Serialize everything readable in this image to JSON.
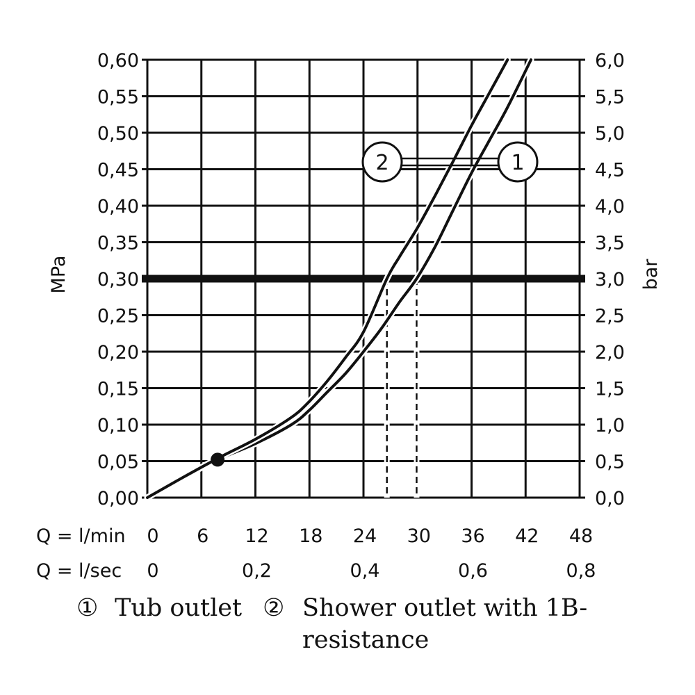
{
  "chart_data": {
    "type": "line",
    "x_unit_primary": "Q = l/min",
    "x_unit_secondary": "Q = l/sec",
    "xlim": [
      0,
      48
    ],
    "x_ticks_primary": [
      0,
      6,
      12,
      18,
      24,
      30,
      36,
      42,
      48
    ],
    "x_tick_labels_primary": [
      "0",
      "6",
      "12",
      "18",
      "24",
      "30",
      "36",
      "42",
      "48"
    ],
    "x_ticks_secondary": [
      0,
      0.2,
      0.4,
      0.6,
      0.8
    ],
    "x_tick_labels_secondary": [
      "0",
      "0,2",
      "0,4",
      "0,6",
      "0,8"
    ],
    "ylabel_left": "MPa",
    "ylabel_right": "bar",
    "ylim": [
      0,
      0.6
    ],
    "y_ticks_left": [
      0,
      0.05,
      0.1,
      0.15,
      0.2,
      0.25,
      0.3,
      0.35,
      0.4,
      0.45,
      0.5,
      0.55,
      0.6
    ],
    "y_tick_labels_left": [
      "0,00",
      "0,05",
      "0,10",
      "0,15",
      "0,20",
      "0,25",
      "0,30",
      "0,35",
      "0,40",
      "0,45",
      "0,50",
      "0,55",
      "0,60"
    ],
    "y_tick_labels_right": [
      "0,0",
      "0,5",
      "1,0",
      "1,5",
      "2,0",
      "2,5",
      "3,0",
      "3,5",
      "4,0",
      "4,5",
      "5,0",
      "5,5",
      "6,0"
    ],
    "grid": true,
    "reference_line_y": 0.3,
    "reference_drops_x": [
      26.6,
      29.9
    ],
    "highlight_point": [
      7.8,
      0.052
    ],
    "series": [
      {
        "marker": "1",
        "x": [
          0,
          4,
          8,
          12,
          16,
          18,
          20,
          22,
          24,
          26,
          28,
          29.9,
          32,
          34,
          36,
          38,
          40,
          42.6
        ],
        "y": [
          0,
          0.028,
          0.053,
          0.074,
          0.1,
          0.12,
          0.145,
          0.17,
          0.2,
          0.232,
          0.268,
          0.3,
          0.345,
          0.395,
          0.445,
          0.49,
          0.535,
          0.6
        ]
      },
      {
        "marker": "2",
        "x": [
          0,
          4,
          8,
          12,
          16,
          18,
          20,
          22,
          24,
          26.6,
          28,
          30,
          32,
          34,
          36,
          38,
          40
        ],
        "y": [
          0,
          0.028,
          0.055,
          0.08,
          0.11,
          0.132,
          0.16,
          0.192,
          0.227,
          0.3,
          0.33,
          0.37,
          0.415,
          0.462,
          0.51,
          0.555,
          0.6
        ]
      }
    ],
    "callout_markers": [
      "2",
      "1"
    ],
    "legend": {
      "item1_symbol": "①",
      "item1_text": "Tub outlet",
      "item2_symbol": "②",
      "item2_text_line1": "Shower outlet with 1B-",
      "item2_text_line2": "resistance"
    }
  }
}
